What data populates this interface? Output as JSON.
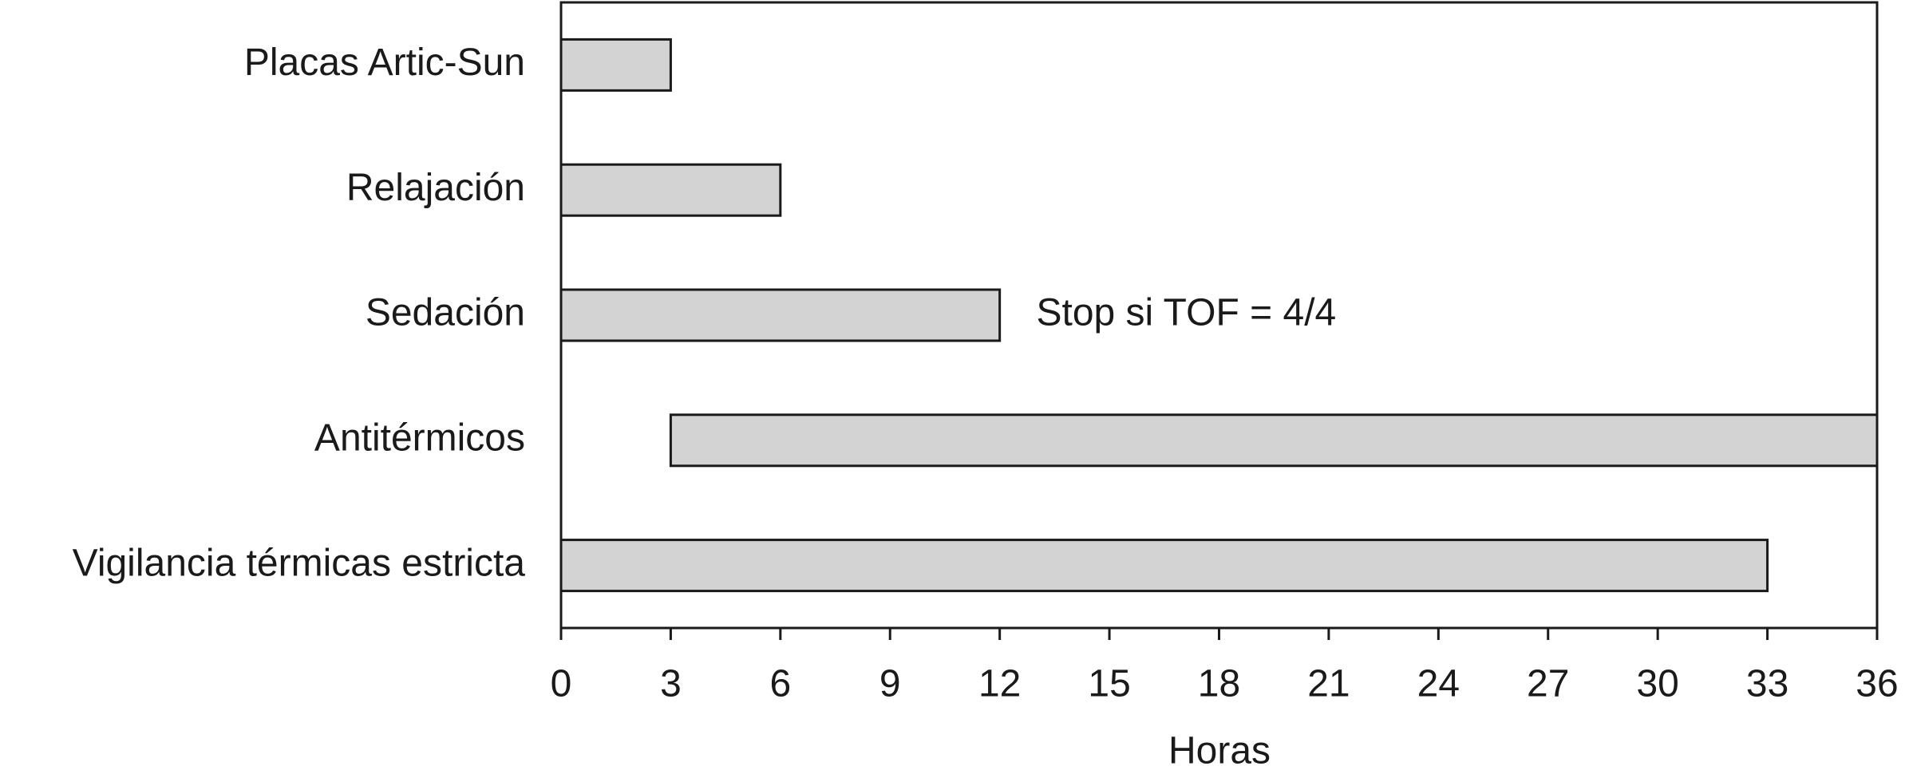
{
  "chart_data": {
    "type": "bar",
    "orientation": "horizontal",
    "categories": [
      "Placas Artic-Sun",
      "Relajación",
      "Sedación",
      "Antitérmicos",
      "Vigilancia térmicas estricta"
    ],
    "starts": [
      0,
      0,
      0,
      3,
      0
    ],
    "ends": [
      3,
      6,
      12,
      36,
      33
    ],
    "color": "#d3d3d3",
    "x_label": "Horas",
    "xlim": [
      0,
      36
    ],
    "xticks": [
      0,
      3,
      6,
      9,
      12,
      15,
      18,
      21,
      24,
      27,
      30,
      33,
      36
    ],
    "annotation": {
      "text": "Stop si TOF = 4/4",
      "category": 2,
      "x": 13
    }
  }
}
